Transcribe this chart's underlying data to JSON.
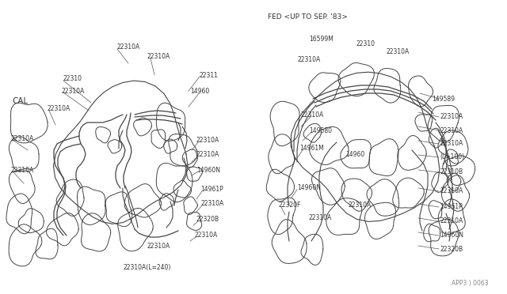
{
  "bg_color": "#ffffff",
  "line_color": "#444444",
  "text_color": "#333333",
  "fig_width": 6.4,
  "fig_height": 3.72,
  "dpi": 100,
  "diagram_id": "APP3 ) 0063",
  "cal_label": "CAL",
  "fed_label": "FED <UP TO SEP. '83>"
}
